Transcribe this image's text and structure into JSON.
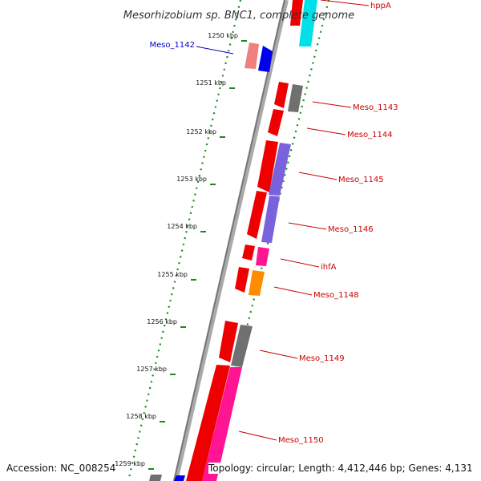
{
  "title": "Mesorhizobium sp. BNC1, complete genome",
  "footer": {
    "accession": "Accession: NC_008254",
    "topology": "Topology: circular; Length: 4,412,446 bp; Genes: 4,131"
  },
  "ticks": [
    "1250 kbp",
    "1251 kbp",
    "1252 kbp",
    "1253 kbp",
    "1254 kbp",
    "1255 kbp",
    "1256 kbp",
    "1257 kbp",
    "1258 kbp",
    "1259 kbp"
  ],
  "genes": [
    {
      "label": "hppA",
      "color": "#cc0000",
      "strand": "+"
    },
    {
      "label": "Meso_1142",
      "color": "#0000cc",
      "strand": "-"
    },
    {
      "label": "Meso_1143",
      "color": "#cc0000",
      "strand": "+"
    },
    {
      "label": "Meso_1144",
      "color": "#cc0000",
      "strand": "+"
    },
    {
      "label": "Meso_1145",
      "color": "#cc0000",
      "strand": "+"
    },
    {
      "label": "Meso_1146",
      "color": "#cc0000",
      "strand": "+"
    },
    {
      "label": "ihfA",
      "color": "#cc0000",
      "strand": "+"
    },
    {
      "label": "Meso_1148",
      "color": "#cc0000",
      "strand": "+"
    },
    {
      "label": "Meso_1149",
      "color": "#cc0000",
      "strand": "+"
    },
    {
      "label": "Meso_1150",
      "color": "#cc0000",
      "strand": "+"
    }
  ]
}
